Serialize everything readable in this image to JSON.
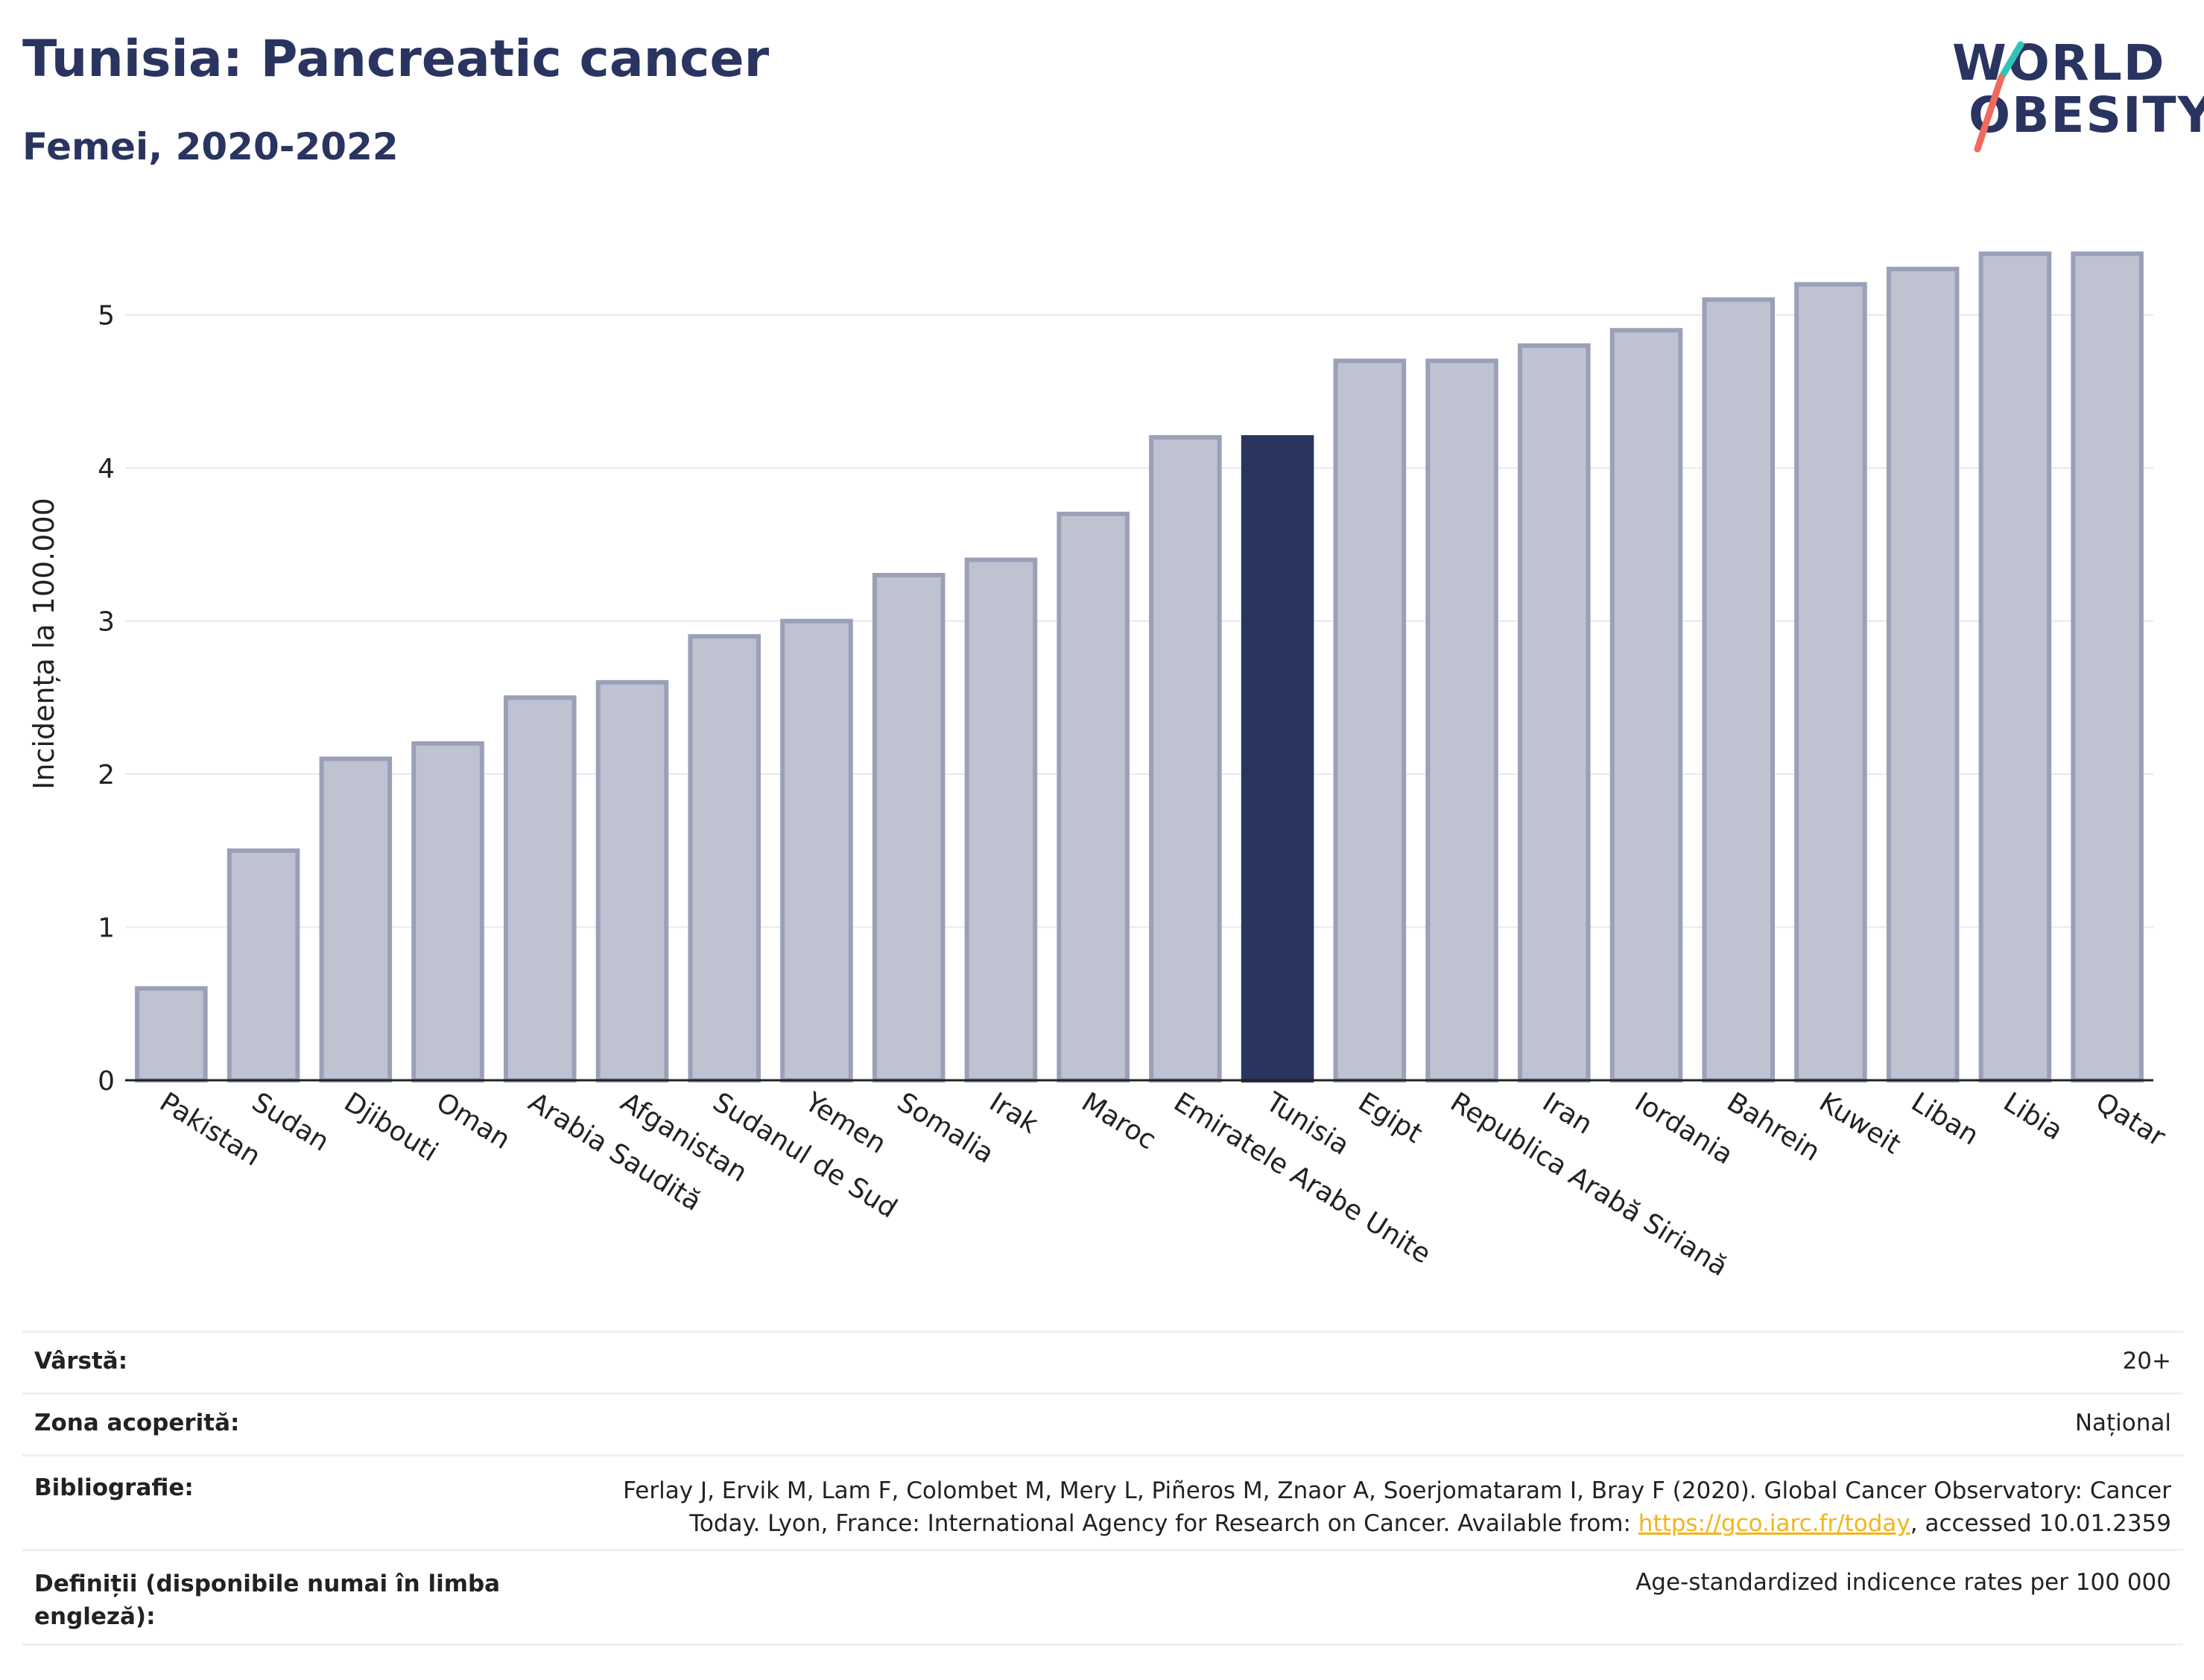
{
  "header": {
    "title": "Tunisia: Pancreatic cancer",
    "subtitle": "Femei, 2020-2022"
  },
  "logo": {
    "line1": "WORLD",
    "line2": "OBESITY",
    "slash_colors": [
      "#2ec4b6",
      "#f06a5d"
    ]
  },
  "colors": {
    "highlight": "#2a3460",
    "bar": "#bfc2d0",
    "bar_border": "#9aa0b8",
    "grid": "#e6e8ee",
    "link": "#f1b51c"
  },
  "chart_data": {
    "type": "bar",
    "categories": [
      "Pakistan",
      "Sudan",
      "Djibouti",
      "Oman",
      "Arabia Saudită",
      "Afganistan",
      "Sudanul de Sud",
      "Yemen",
      "Somalia",
      "Irak",
      "Maroc",
      "Emiratele Arabe Unite",
      "Tunisia",
      "Egipt",
      "Republica Arabă Siriană",
      "Iran",
      "Iordania",
      "Bahrein",
      "Kuweit",
      "Liban",
      "Libia",
      "Qatar"
    ],
    "values": [
      0.6,
      1.5,
      2.1,
      2.2,
      2.5,
      2.6,
      2.9,
      3.0,
      3.3,
      3.4,
      3.7,
      4.2,
      4.2,
      4.7,
      4.7,
      4.8,
      4.9,
      5.1,
      5.2,
      5.3,
      5.4,
      5.4
    ],
    "highlight": "Tunisia",
    "ylabel": "Incidența la 100.000",
    "xlabel": "",
    "ylim": [
      0,
      5.5
    ],
    "yticks": [
      0,
      1,
      2,
      3,
      4,
      5
    ],
    "grid": true
  },
  "info": {
    "rows": [
      {
        "label": "Vârstă:",
        "value": "20+"
      },
      {
        "label": "Zona acoperită:",
        "value": "Național"
      },
      {
        "label": "Bibliografie:",
        "value_line1": "Ferlay J, Ervik M, Lam F, Colombet M, Mery L, Piñeros M, Znaor A, Soerjomataram I, Bray F (2020). Global Cancer Observatory: Cancer",
        "value_line2_pre": "Today. Lyon, France: International Agency for Research on Cancer. Available from: ",
        "value_link": "https://gco.iarc.fr/today",
        "value_line2_post": ", accessed 10.01.2359"
      },
      {
        "label_line1": "Definiții (disponibile numai în limba",
        "label_line2": "engleză):",
        "value": "Age-standardized indicence rates per 100 000"
      }
    ]
  }
}
